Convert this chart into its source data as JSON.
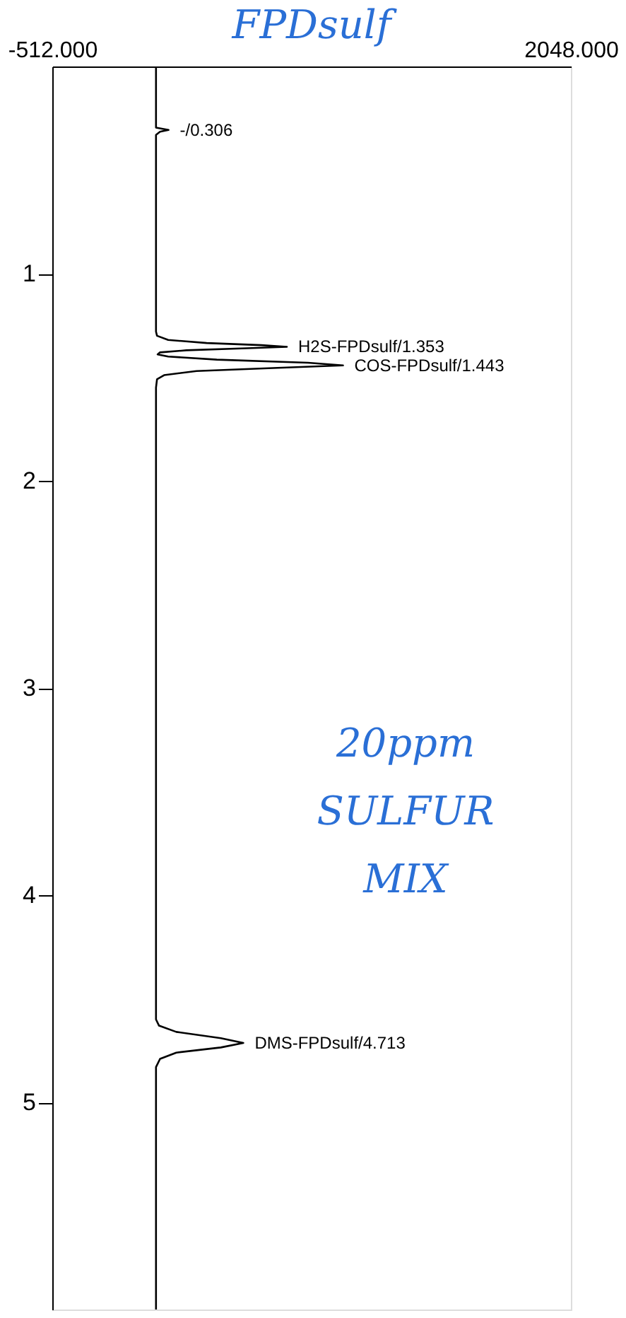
{
  "chart_data": {
    "type": "line",
    "title": "FPDsulf",
    "x": [
      0,
      0,
      0,
      62,
      20,
      0,
      0,
      5,
      60,
      250,
      520,
      646,
      450,
      150,
      20,
      8,
      60,
      300,
      750,
      923,
      600,
      200,
      40,
      5,
      0,
      0,
      15,
      100,
      320,
      431,
      320,
      100,
      20,
      0,
      0
    ],
    "values": [
      0.0,
      0.28,
      0.295,
      0.306,
      0.315,
      0.33,
      1.28,
      1.3,
      1.32,
      1.335,
      1.345,
      1.353,
      1.36,
      1.37,
      1.38,
      1.39,
      1.4,
      1.415,
      1.43,
      1.443,
      1.455,
      1.47,
      1.49,
      1.51,
      1.55,
      4.6,
      4.63,
      4.66,
      4.69,
      4.713,
      4.735,
      4.76,
      4.79,
      4.83,
      6.0
    ],
    "color": "#000000",
    "xlim": [
      -512,
      2048
    ],
    "xticks": [
      {
        "value": -512,
        "label": "-512.000"
      },
      {
        "value": 2048,
        "label": "2048.000"
      }
    ],
    "ylim": [
      6.0,
      0.0
    ],
    "yticks": [
      1,
      2,
      3,
      4,
      5
    ],
    "grid": false,
    "marker": "none",
    "line_style": "solid",
    "annotations": [
      {
        "text": "-/0.306",
        "x": 62,
        "y": 0.306
      },
      {
        "text": "H2S-FPDsulf/1.353",
        "x": 646,
        "y": 1.353
      },
      {
        "text": "COS-FPDsulf/1.443",
        "x": 923,
        "y": 1.443
      },
      {
        "text": "DMS-FPDsulf/4.713",
        "x": 431,
        "y": 4.713
      },
      "20ppm SULFUR MIX"
    ]
  }
}
